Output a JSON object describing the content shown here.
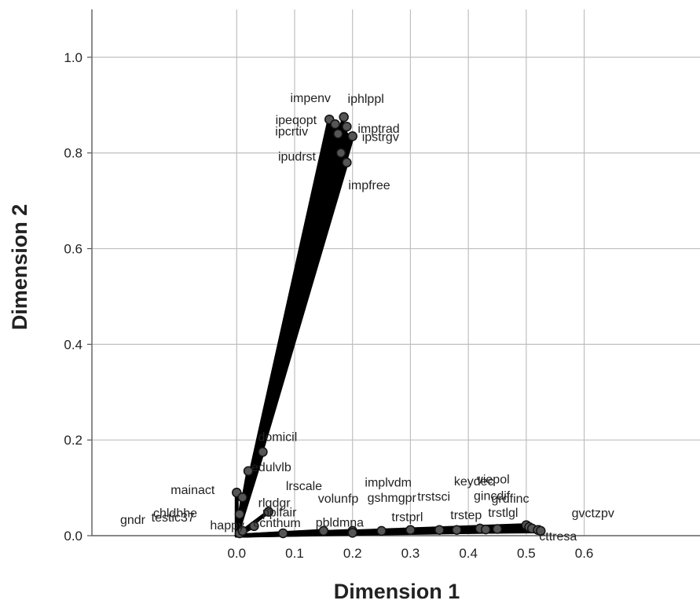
{
  "chart_data": {
    "type": "scatter",
    "subtype": "biplot-vectors",
    "title": "",
    "xlabel": "Dimension 1",
    "ylabel": "Dimension 2",
    "xlim": [
      -0.25,
      0.8
    ],
    "ylim": [
      0.0,
      1.1
    ],
    "xticks": [
      0.0,
      0.1,
      0.2,
      0.3,
      0.4,
      0.5,
      0.6
    ],
    "xtick_labels": [
      "0.0",
      "0.1",
      "0.2",
      "0.3",
      "0.4",
      "0.5",
      "0.6"
    ],
    "yticks": [
      0.0,
      0.2,
      0.4,
      0.6,
      0.8,
      1.0
    ],
    "ytick_labels": [
      "0.0",
      "0.2",
      "0.4",
      "0.6",
      "0.8",
      "1.0"
    ],
    "grid": true,
    "vector_origin": [
      0.0,
      0.0
    ],
    "series": [
      {
        "points": [
          {
            "label": "impenv",
            "x": 0.16,
            "y": 0.87
          },
          {
            "label": "iphlppl",
            "x": 0.185,
            "y": 0.875
          },
          {
            "label": "ipeqopt",
            "x": 0.17,
            "y": 0.86
          },
          {
            "label": "imptrad",
            "x": 0.19,
            "y": 0.855
          },
          {
            "label": "ipcrtiv",
            "x": 0.175,
            "y": 0.84
          },
          {
            "label": "ipstrgv",
            "x": 0.2,
            "y": 0.835
          },
          {
            "label": "ipudrst",
            "x": 0.18,
            "y": 0.8
          },
          {
            "label": "impfree",
            "x": 0.19,
            "y": 0.78
          },
          {
            "label": "domicil",
            "x": 0.045,
            "y": 0.175
          },
          {
            "label": "edulvlb",
            "x": 0.02,
            "y": 0.135
          },
          {
            "label": "mainact",
            "x": 0.0,
            "y": 0.09
          },
          {
            "label": "rlgdgr",
            "x": 0.01,
            "y": 0.08
          },
          {
            "label": "chldhhe",
            "x": 0.005,
            "y": 0.045
          },
          {
            "label": "pplfair",
            "x": 0.055,
            "y": 0.05
          },
          {
            "label": "happy",
            "x": 0.03,
            "y": 0.02
          },
          {
            "label": "gndr",
            "x": 0.005,
            "y": 0.005
          },
          {
            "label": "testic37",
            "x": 0.01,
            "y": 0.01
          },
          {
            "label": "lrscale",
            "x": 0.15,
            "y": 0.01
          },
          {
            "label": "volunfp",
            "x": 0.2,
            "y": 0.01
          },
          {
            "label": "implvdm",
            "x": 0.3,
            "y": 0.012
          },
          {
            "label": "keydec",
            "x": 0.42,
            "y": 0.015
          },
          {
            "label": "gshmgpr",
            "x": 0.25,
            "y": 0.01
          },
          {
            "label": "trstsci",
            "x": 0.35,
            "y": 0.012
          },
          {
            "label": "gincdif",
            "x": 0.45,
            "y": 0.014
          },
          {
            "label": "ccnthum",
            "x": 0.08,
            "y": 0.005
          },
          {
            "label": "pbldmna",
            "x": 0.2,
            "y": 0.006
          },
          {
            "label": "trstprl",
            "x": 0.38,
            "y": 0.012
          },
          {
            "label": "trstep",
            "x": 0.43,
            "y": 0.013
          },
          {
            "label": "viepol",
            "x": 0.5,
            "y": 0.022
          },
          {
            "label": "grdfinc",
            "x": 0.505,
            "y": 0.018
          },
          {
            "label": "trstlgl",
            "x": 0.51,
            "y": 0.015
          },
          {
            "label": "gvctzpv",
            "x": 0.52,
            "y": 0.012
          },
          {
            "label": "cttresa",
            "x": 0.525,
            "y": 0.01
          }
        ]
      }
    ],
    "colors": {
      "vector": "#000000",
      "point_fill": "#555555",
      "grid": "#bfbfbf"
    }
  }
}
